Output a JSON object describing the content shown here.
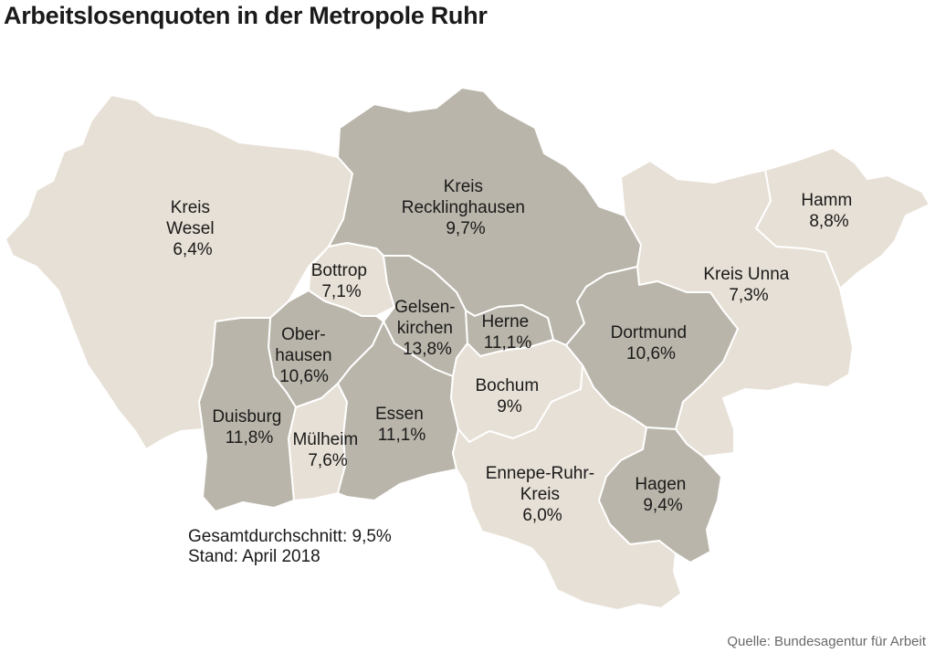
{
  "title": "Arbeitslosenquoten in der Metropole Ruhr",
  "regions": {
    "wesel": {
      "line1": "Kreis",
      "line2": "Wesel",
      "rate": "6,4%"
    },
    "recklinghausen": {
      "line1": "Kreis",
      "line2": "Recklinghausen",
      "rate": "9,7%"
    },
    "hamm": {
      "line1": "Hamm",
      "rate": "8,8%"
    },
    "unna": {
      "line1": "Kreis Unna",
      "rate": "7,3%"
    },
    "bottrop": {
      "line1": "Bottrop",
      "rate": "7,1%"
    },
    "oberhausen": {
      "line1": "Ober-",
      "line2": "hausen",
      "rate": "10,6%"
    },
    "gelsenkirchen": {
      "line1": "Gelsen-",
      "line2": "kirchen",
      "rate": "13,8%"
    },
    "herne": {
      "line1": "Herne",
      "rate": "11,1%"
    },
    "dortmund": {
      "line1": "Dortmund",
      "rate": "10,6%"
    },
    "bochum": {
      "line1": "Bochum",
      "rate": "9%"
    },
    "duisburg": {
      "line1": "Duisburg",
      "rate": "11,8%"
    },
    "muelheim": {
      "line1": "Mülheim",
      "rate": "7,6%"
    },
    "essen": {
      "line1": "Essen",
      "rate": "11,1%"
    },
    "ennepe": {
      "line1": "Ennepe-Ruhr-",
      "line2": "Kreis",
      "rate": "6,0%"
    },
    "hagen": {
      "line1": "Hagen",
      "rate": "9,4%"
    }
  },
  "notes": {
    "average": "Gesamtdurchschnitt: 9,5%",
    "date": "Stand: April 2018"
  },
  "source": "Quelle: Bundesagentur für Arbeit",
  "colors": {
    "light": "#e7e0d6",
    "dark": "#b9b5aa"
  }
}
